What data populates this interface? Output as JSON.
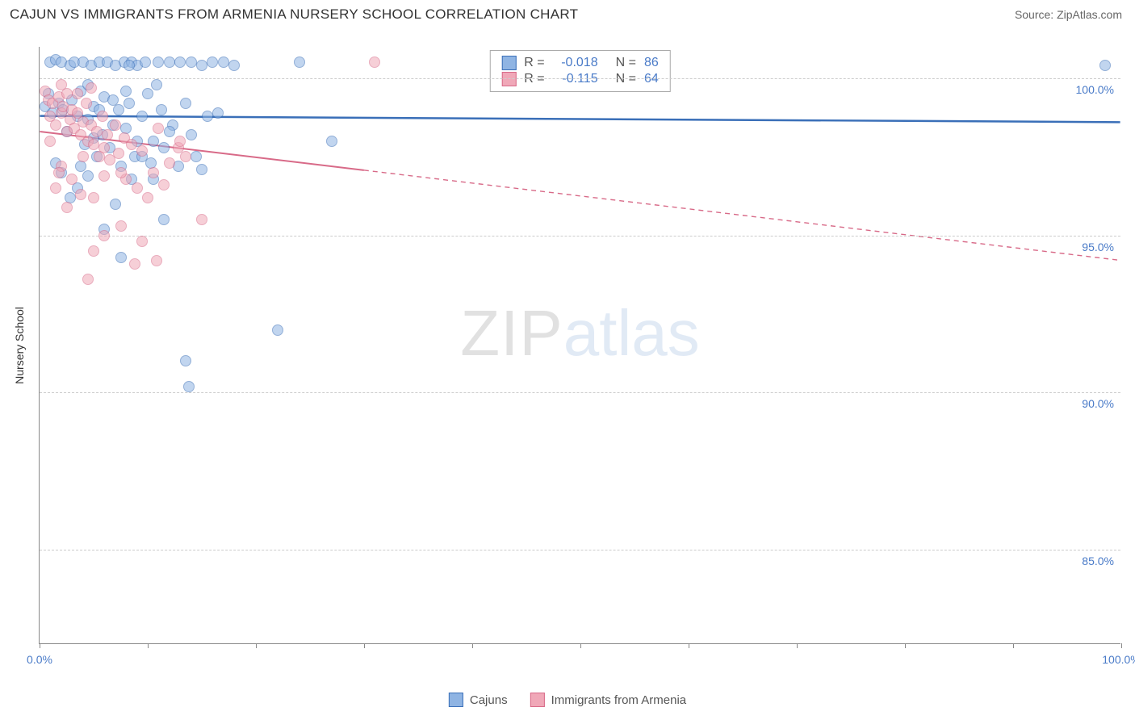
{
  "title": "CAJUN VS IMMIGRANTS FROM ARMENIA NURSERY SCHOOL CORRELATION CHART",
  "source": "Source: ZipAtlas.com",
  "ylabel": "Nursery School",
  "watermark_a": "ZIP",
  "watermark_b": "atlas",
  "chart": {
    "type": "scatter",
    "xlim": [
      0,
      100
    ],
    "ylim": [
      82,
      101
    ],
    "yticks": [
      {
        "v": 100,
        "label": "100.0%"
      },
      {
        "v": 95,
        "label": "95.0%"
      },
      {
        "v": 90,
        "label": "90.0%"
      },
      {
        "v": 85,
        "label": "85.0%"
      }
    ],
    "xticks": [
      0,
      10,
      20,
      30,
      40,
      50,
      60,
      70,
      80,
      90,
      100
    ],
    "xlabels": [
      {
        "v": 0,
        "label": "0.0%"
      },
      {
        "v": 100,
        "label": "100.0%"
      }
    ],
    "background_color": "#ffffff",
    "grid_color": "#cccccc",
    "axis_color": "#888888",
    "point_radius": 7,
    "series": [
      {
        "name": "Cajuns",
        "color_fill": "#8fb4e3",
        "color_stroke": "#3a6fb8",
        "R": "-0.018",
        "N": "86",
        "trend": {
          "x1": 0,
          "y1": 98.8,
          "x2": 100,
          "y2": 98.6,
          "solid_until_x": 100,
          "width": 2.5
        },
        "points": [
          [
            0.5,
            99.1
          ],
          [
            0.8,
            99.5
          ],
          [
            1.0,
            100.5
          ],
          [
            1.2,
            98.9
          ],
          [
            1.5,
            100.6
          ],
          [
            1.8,
            99.2
          ],
          [
            2.0,
            100.5
          ],
          [
            2.2,
            99.0
          ],
          [
            2.5,
            98.3
          ],
          [
            2.8,
            100.4
          ],
          [
            3.0,
            99.3
          ],
          [
            3.2,
            100.5
          ],
          [
            3.5,
            98.8
          ],
          [
            3.8,
            99.6
          ],
          [
            4.0,
            100.5
          ],
          [
            4.2,
            97.9
          ],
          [
            4.5,
            98.7
          ],
          [
            4.8,
            100.4
          ],
          [
            5.0,
            99.1
          ],
          [
            5.3,
            97.5
          ],
          [
            5.5,
            100.5
          ],
          [
            5.8,
            98.2
          ],
          [
            6.0,
            99.4
          ],
          [
            6.3,
            100.5
          ],
          [
            6.5,
            97.8
          ],
          [
            6.8,
            98.5
          ],
          [
            7.0,
            100.4
          ],
          [
            7.3,
            99.0
          ],
          [
            7.5,
            97.2
          ],
          [
            7.8,
            100.5
          ],
          [
            8.0,
            98.4
          ],
          [
            8.3,
            99.2
          ],
          [
            8.5,
            100.5
          ],
          [
            8.8,
            97.5
          ],
          [
            9.0,
            100.4
          ],
          [
            9.5,
            98.8
          ],
          [
            9.8,
            100.5
          ],
          [
            10.0,
            99.5
          ],
          [
            10.3,
            97.3
          ],
          [
            10.5,
            98.0
          ],
          [
            11.0,
            100.5
          ],
          [
            11.3,
            99.0
          ],
          [
            11.5,
            97.8
          ],
          [
            12.0,
            100.5
          ],
          [
            12.3,
            98.5
          ],
          [
            12.8,
            97.2
          ],
          [
            13.0,
            100.5
          ],
          [
            13.5,
            99.2
          ],
          [
            14.0,
            100.5
          ],
          [
            14.5,
            97.5
          ],
          [
            15.0,
            100.4
          ],
          [
            15.5,
            98.8
          ],
          [
            16.0,
            100.5
          ],
          [
            17.0,
            100.5
          ],
          [
            18.0,
            100.4
          ],
          [
            24.0,
            100.5
          ],
          [
            27.0,
            98.0
          ],
          [
            3.5,
            96.5
          ],
          [
            6.0,
            95.2
          ],
          [
            7.5,
            94.3
          ],
          [
            11.5,
            95.5
          ],
          [
            8.5,
            96.8
          ],
          [
            13.5,
            91.0
          ],
          [
            13.8,
            90.2
          ],
          [
            22.0,
            92.0
          ],
          [
            2.0,
            97.0
          ],
          [
            4.5,
            96.9
          ],
          [
            9.5,
            97.5
          ],
          [
            5.5,
            99.0
          ],
          [
            6.8,
            99.3
          ],
          [
            8.3,
            100.4
          ],
          [
            10.8,
            99.8
          ],
          [
            12.0,
            98.3
          ],
          [
            1.5,
            97.3
          ],
          [
            2.8,
            96.2
          ],
          [
            3.8,
            97.2
          ],
          [
            4.5,
            99.8
          ],
          [
            5.0,
            98.1
          ],
          [
            7.0,
            96.0
          ],
          [
            8.0,
            99.6
          ],
          [
            9.0,
            98.0
          ],
          [
            10.5,
            96.8
          ],
          [
            14.0,
            98.2
          ],
          [
            15.0,
            97.1
          ],
          [
            16.5,
            98.9
          ],
          [
            98.5,
            100.4
          ]
        ]
      },
      {
        "name": "Immigrants from Armenia",
        "color_fill": "#f0a8b8",
        "color_stroke": "#d86a88",
        "R": "-0.115",
        "N": "64",
        "trend": {
          "x1": 0,
          "y1": 98.3,
          "x2": 100,
          "y2": 94.2,
          "solid_until_x": 30,
          "width": 2
        },
        "points": [
          [
            0.5,
            99.6
          ],
          [
            0.8,
            99.3
          ],
          [
            1.0,
            98.8
          ],
          [
            1.2,
            99.2
          ],
          [
            1.5,
            98.5
          ],
          [
            1.8,
            99.4
          ],
          [
            2.0,
            98.9
          ],
          [
            2.2,
            99.1
          ],
          [
            2.5,
            98.3
          ],
          [
            2.8,
            98.7
          ],
          [
            3.0,
            99.0
          ],
          [
            3.2,
            98.4
          ],
          [
            3.5,
            98.9
          ],
          [
            3.8,
            98.2
          ],
          [
            4.0,
            98.6
          ],
          [
            4.3,
            99.2
          ],
          [
            4.5,
            98.0
          ],
          [
            4.8,
            98.5
          ],
          [
            5.0,
            97.9
          ],
          [
            5.3,
            98.3
          ],
          [
            5.5,
            97.5
          ],
          [
            5.8,
            98.8
          ],
          [
            6.0,
            97.8
          ],
          [
            6.3,
            98.2
          ],
          [
            6.5,
            97.4
          ],
          [
            7.0,
            98.5
          ],
          [
            7.3,
            97.6
          ],
          [
            7.8,
            98.1
          ],
          [
            8.0,
            96.8
          ],
          [
            8.5,
            97.9
          ],
          [
            9.0,
            96.5
          ],
          [
            9.5,
            97.7
          ],
          [
            10.0,
            96.2
          ],
          [
            10.5,
            97.0
          ],
          [
            11.0,
            98.4
          ],
          [
            11.5,
            96.6
          ],
          [
            12.0,
            97.3
          ],
          [
            12.8,
            97.8
          ],
          [
            13.5,
            97.5
          ],
          [
            15.0,
            95.5
          ],
          [
            2.0,
            97.2
          ],
          [
            3.0,
            96.8
          ],
          [
            4.0,
            97.5
          ],
          [
            5.0,
            96.2
          ],
          [
            6.0,
            96.9
          ],
          [
            7.5,
            97.0
          ],
          [
            1.5,
            96.5
          ],
          [
            2.5,
            95.9
          ],
          [
            3.8,
            96.3
          ],
          [
            5.0,
            94.5
          ],
          [
            6.0,
            95.0
          ],
          [
            7.5,
            95.3
          ],
          [
            8.8,
            94.1
          ],
          [
            9.5,
            94.8
          ],
          [
            10.8,
            94.2
          ],
          [
            4.5,
            93.6
          ],
          [
            31.0,
            100.5
          ],
          [
            2.0,
            99.8
          ],
          [
            3.5,
            99.5
          ],
          [
            4.8,
            99.7
          ],
          [
            1.0,
            98.0
          ],
          [
            1.8,
            97.0
          ],
          [
            2.5,
            99.5
          ],
          [
            13.0,
            98.0
          ]
        ]
      }
    ]
  },
  "legend": {
    "r_label": "R =",
    "n_label": "N ="
  }
}
